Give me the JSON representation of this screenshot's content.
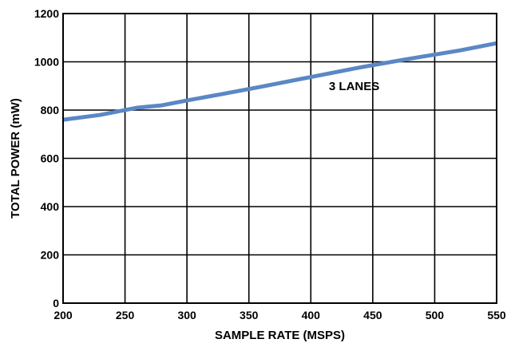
{
  "chart_data": {
    "type": "line",
    "title": "",
    "xlabel": "SAMPLE RATE (MSPS)",
    "ylabel": "TOTAL POWER (mW)",
    "xlim": [
      200,
      550
    ],
    "ylim": [
      0,
      1200
    ],
    "xticks": [
      200,
      250,
      300,
      350,
      400,
      450,
      500,
      550
    ],
    "yticks": [
      0,
      200,
      400,
      600,
      800,
      1000,
      1200
    ],
    "xtick_labels": [
      "200",
      "250",
      "300",
      "350",
      "400",
      "450",
      "500",
      "550"
    ],
    "ytick_labels": [
      "0",
      "200",
      "400",
      "600",
      "800",
      "1000",
      "1200"
    ],
    "grid": true,
    "legend": "none",
    "series": [
      {
        "color": "#5b87c5",
        "x": [
          200,
          230,
          260,
          280,
          300,
          330,
          360,
          400,
          440,
          480,
          520,
          550
        ],
        "y": [
          760,
          780,
          810,
          820,
          840,
          868,
          897,
          937,
          977,
          1013,
          1047,
          1077
        ]
      }
    ],
    "annotations": [
      {
        "text": "3 LANES",
        "x": 435,
        "y": 900
      }
    ]
  }
}
